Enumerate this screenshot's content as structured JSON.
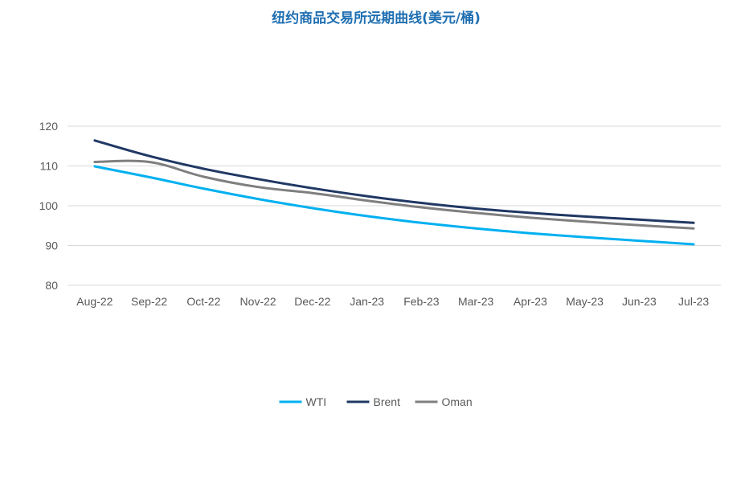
{
  "chart_data": {
    "type": "line",
    "title": "纽约商品交易所远期曲线(美元/桶)",
    "xlabel": "",
    "ylabel": "",
    "categories": [
      "Aug-22",
      "Sep-22",
      "Oct-22",
      "Nov-22",
      "Dec-22",
      "Jan-23",
      "Feb-23",
      "Mar-23",
      "Apr-23",
      "May-23",
      "Jun-23",
      "Jul-23"
    ],
    "ylim": [
      80,
      120
    ],
    "yticks": [
      80,
      90,
      100,
      110,
      120
    ],
    "grid": true,
    "legend_position": "bottom",
    "series": [
      {
        "name": "WTI",
        "color": "#00b0f0",
        "values": [
          109.9,
          107.2,
          104.3,
          101.7,
          99.4,
          97.4,
          95.7,
          94.3,
          93.1,
          92.1,
          91.2,
          90.3
        ]
      },
      {
        "name": "Brent",
        "color": "#203864",
        "values": [
          116.4,
          112.5,
          109.3,
          106.7,
          104.4,
          102.4,
          100.7,
          99.3,
          98.2,
          97.3,
          96.5,
          95.7
        ]
      },
      {
        "name": "Oman",
        "color": "#7f7f7f",
        "values": [
          111.0,
          111.0,
          107.3,
          104.7,
          103.2,
          101.3,
          99.6,
          98.2,
          97.0,
          96.0,
          95.1,
          94.3
        ]
      }
    ]
  }
}
